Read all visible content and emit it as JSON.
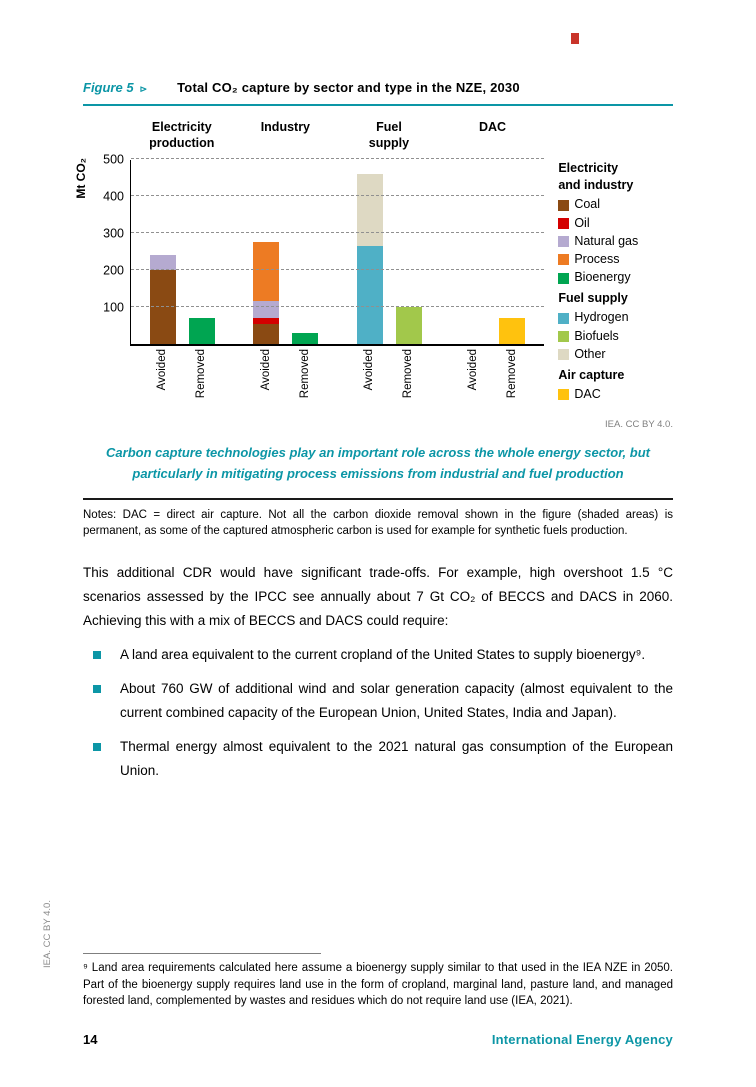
{
  "accent": "#0c96a6",
  "figure": {
    "label": "Figure 5",
    "arrow": "⊳",
    "title": "Total CO₂ capture by sector and type in the NZE, 2030"
  },
  "chart_data": {
    "type": "bar",
    "stacked": true,
    "title": "Total CO₂ capture by sector and type in the NZE, 2030",
    "ylabel": "Mt CO₂",
    "ylim": [
      0,
      500
    ],
    "yticks": [
      100,
      200,
      300,
      400,
      500
    ],
    "grid": "dashed horizontal",
    "legend_position": "right",
    "groups": [
      {
        "label": "Electricity\nproduction",
        "bars": [
          {
            "label": "Avoided",
            "segments": [
              {
                "name": "Coal",
                "value": 200
              },
              {
                "name": "Natural gas",
                "value": 40
              }
            ]
          },
          {
            "label": "Removed",
            "segments": [
              {
                "name": "Bioenergy",
                "value": 70
              }
            ]
          }
        ]
      },
      {
        "label": "Industry",
        "bars": [
          {
            "label": "Avoided",
            "segments": [
              {
                "name": "Coal",
                "value": 55
              },
              {
                "name": "Oil",
                "value": 15
              },
              {
                "name": "Natural gas",
                "value": 45
              },
              {
                "name": "Process",
                "value": 160
              }
            ]
          },
          {
            "label": "Removed",
            "segments": [
              {
                "name": "Bioenergy",
                "value": 30
              }
            ]
          }
        ]
      },
      {
        "label": "Fuel\nsupply",
        "bars": [
          {
            "label": "Avoided",
            "segments": [
              {
                "name": "Hydrogen",
                "value": 265
              },
              {
                "name": "Other",
                "value": 195
              }
            ]
          },
          {
            "label": "Removed",
            "segments": [
              {
                "name": "Biofuels",
                "value": 100
              }
            ]
          }
        ]
      },
      {
        "label": "DAC",
        "bars": [
          {
            "label": "Avoided",
            "segments": []
          },
          {
            "label": "Removed",
            "segments": [
              {
                "name": "DAC",
                "value": 70
              }
            ]
          }
        ]
      }
    ],
    "colors": {
      "Coal": "#8a4a13",
      "Oil": "#d40000",
      "Natural gas": "#b5aad0",
      "Process": "#ed7b23",
      "Bioenergy": "#00a551",
      "Hydrogen": "#4fb0c6",
      "Biofuels": "#a2c84b",
      "Other": "#ded9c3",
      "DAC": "#ffc20e"
    },
    "legend": [
      {
        "header": "Electricity\nand industry",
        "items": [
          "Coal",
          "Oil",
          "Natural gas",
          "Process",
          "Bioenergy"
        ]
      },
      {
        "header": "Fuel supply",
        "items": [
          "Hydrogen",
          "Biofuels",
          "Other"
        ]
      },
      {
        "header": "Air capture",
        "items": [
          "DAC"
        ]
      }
    ]
  },
  "chart_credit": "IEA. CC BY 4.0.",
  "key_message": "Carbon capture technologies play an important role across the whole energy sector, but particularly in mitigating process emissions from industrial and fuel production",
  "notes": "Notes: DAC = direct air capture. Not all the carbon dioxide removal shown in the figure (shaded areas) is permanent, as some of the captured atmospheric carbon is used for example for synthetic fuels production.",
  "body": {
    "paragraph": "This additional CDR would have significant trade-offs. For example, high overshoot 1.5 °C scenarios assessed by the IPCC see annually about 7 Gt CO₂ of BECCS and DACS in 2060. Achieving this with a mix of BECCS and DACS could require:",
    "bullets": [
      "A land area equivalent to the current cropland of the United States to supply bioenergy⁹.",
      "About 760 GW of additional wind and solar generation capacity (almost equivalent to the current combined capacity of the European Union, United States, India and Japan).",
      "Thermal energy almost equivalent to the 2021 natural gas consumption of the European Union."
    ]
  },
  "side_credit": "IEA. CC BY 4.0.",
  "footnote": "⁹ Land area requirements calculated here assume a bioenergy supply similar to that used in the IEA NZE in 2050. Part of the bioenergy supply requires land use in the form of cropland, marginal land, pasture land, and managed forested land, complemented by wastes and residues which do not require land use (IEA, 2021).",
  "footer": {
    "page_number": "14",
    "organization": "International Energy Agency"
  }
}
